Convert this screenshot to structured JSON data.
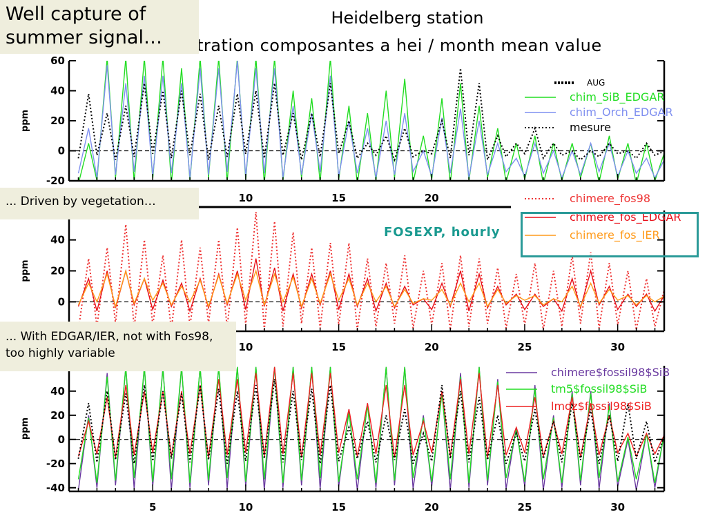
{
  "slide": {
    "note_top": "Well capture of summer signal…",
    "note_middle": "... Driven by vegetation…",
    "note_bottom": "... With EDGAR/IER, not with Fos98, too highly variable",
    "station": "Heidelberg station",
    "plot_title": "tration composantes a hei / month mean value",
    "fosexp_label": "FOSEXP, hourly"
  },
  "chart_data": [
    {
      "type": "line",
      "ylabel": "ppm",
      "ylim": [
        -20,
        60
      ],
      "xlim": [
        0.5,
        32.5
      ],
      "yticks": [
        -20,
        0,
        20,
        40,
        60
      ],
      "xticks": [
        10,
        15,
        20
      ],
      "zero_line": "dashed",
      "legend_title": "AUG",
      "series": [
        {
          "name": "chim_SiB_EDGAR",
          "color": "#22dd22",
          "style": "solid",
          "trough": -22,
          "peaks": [
            5,
            62,
            62,
            62,
            62,
            55,
            62,
            62,
            62,
            62,
            62,
            40,
            35,
            62,
            30,
            25,
            40,
            48,
            10,
            35,
            45,
            30,
            15,
            5,
            10,
            5,
            5,
            5,
            10,
            5,
            5,
            0
          ]
        },
        {
          "name": "chim_Orch_EDGAR",
          "color": "#7f8ff0",
          "style": "solid",
          "trough": -18,
          "peaks": [
            15,
            57,
            45,
            50,
            50,
            45,
            55,
            55,
            60,
            55,
            55,
            30,
            25,
            50,
            20,
            15,
            20,
            25,
            0,
            22,
            28,
            20,
            5,
            -5,
            5,
            0,
            0,
            5,
            5,
            0,
            -5,
            -5
          ]
        },
        {
          "name": "mesure",
          "color": "#000000",
          "style": "dotted",
          "trough": -6,
          "peaks": [
            38,
            25,
            30,
            45,
            40,
            40,
            38,
            30,
            38,
            40,
            45,
            25,
            25,
            45,
            20,
            5,
            10,
            15,
            0,
            20,
            55,
            45,
            10,
            5,
            15,
            5,
            0,
            0,
            5,
            0,
            5,
            0
          ]
        }
      ]
    },
    {
      "type": "line",
      "ylabel": "ppm",
      "ylim": [
        -19,
        59
      ],
      "xlim": [
        0.5,
        32.5
      ],
      "yticks": [
        0,
        20,
        40
      ],
      "xticks": [
        10,
        15,
        20,
        25,
        30
      ],
      "zero_line": "dashed",
      "series": [
        {
          "name": "chimere_fos98",
          "color": "#ee3333",
          "style": "dotted",
          "trough": -18,
          "peaks": [
            28,
            35,
            50,
            40,
            30,
            40,
            35,
            40,
            48,
            58,
            52,
            45,
            35,
            38,
            38,
            28,
            25,
            30,
            20,
            25,
            30,
            28,
            22,
            18,
            25,
            20,
            30,
            32,
            25,
            20,
            15,
            10
          ]
        },
        {
          "name": "chimere_fos_EDGAR",
          "color": "#e8101a",
          "style": "solid",
          "trough": -6,
          "peaks": [
            15,
            20,
            20,
            15,
            14,
            12,
            15,
            18,
            20,
            28,
            22,
            18,
            18,
            20,
            18,
            15,
            12,
            10,
            2,
            12,
            20,
            18,
            10,
            5,
            5,
            2,
            15,
            20,
            10,
            5,
            5,
            5
          ]
        },
        {
          "name": "chimere_fos_IER",
          "color": "#ff9a1a",
          "style": "solid",
          "trough": -3,
          "peaks": [
            12,
            18,
            20,
            15,
            12,
            10,
            14,
            17,
            18,
            20,
            18,
            16,
            15,
            18,
            15,
            12,
            10,
            8,
            2,
            8,
            12,
            12,
            8,
            4,
            4,
            2,
            10,
            12,
            8,
            4,
            4,
            4
          ]
        }
      ]
    },
    {
      "type": "line",
      "ylabel": "ppm",
      "ylim": [
        -43,
        61
      ],
      "xlim": [
        0.5,
        32.5
      ],
      "yticks": [
        -40,
        -20,
        0,
        20,
        40
      ],
      "xticks": [
        5,
        10,
        15,
        20,
        25,
        30
      ],
      "zero_line": "dashed",
      "series": [
        {
          "name": "chimere$fossil98$SiB",
          "color": "#6a3aa0",
          "style": "solid",
          "trough": -42,
          "peaks": [
            20,
            55,
            60,
            60,
            60,
            60,
            60,
            60,
            60,
            60,
            60,
            60,
            60,
            60,
            25,
            30,
            60,
            60,
            20,
            40,
            55,
            60,
            50,
            10,
            45,
            20,
            40,
            40,
            30,
            0,
            5,
            10
          ]
        },
        {
          "name": "tm5$fossil98$SiB",
          "color": "#22dd22",
          "style": "solid",
          "trough": -36,
          "peaks": [
            18,
            52,
            60,
            60,
            58,
            60,
            60,
            60,
            60,
            60,
            60,
            60,
            60,
            60,
            22,
            28,
            60,
            60,
            18,
            38,
            52,
            60,
            48,
            8,
            42,
            18,
            38,
            38,
            28,
            2,
            5,
            8
          ]
        },
        {
          "name": "lmdz$fossil98$SiB",
          "color": "#ee2222",
          "style": "solid",
          "trough": -15,
          "peaks": [
            15,
            35,
            45,
            40,
            40,
            40,
            45,
            50,
            50,
            55,
            60,
            55,
            55,
            55,
            25,
            30,
            45,
            45,
            15,
            40,
            50,
            55,
            45,
            10,
            35,
            15,
            35,
            30,
            20,
            5,
            5,
            5
          ]
        },
        {
          "color": "#000000",
          "style": "dotted",
          "trough": -20,
          "peaks": [
            30,
            40,
            38,
            45,
            40,
            38,
            45,
            42,
            40,
            45,
            50,
            40,
            42,
            45,
            10,
            15,
            20,
            25,
            5,
            45,
            40,
            35,
            20,
            5,
            25,
            15,
            30,
            25,
            20,
            30,
            15,
            5
          ]
        }
      ]
    }
  ]
}
